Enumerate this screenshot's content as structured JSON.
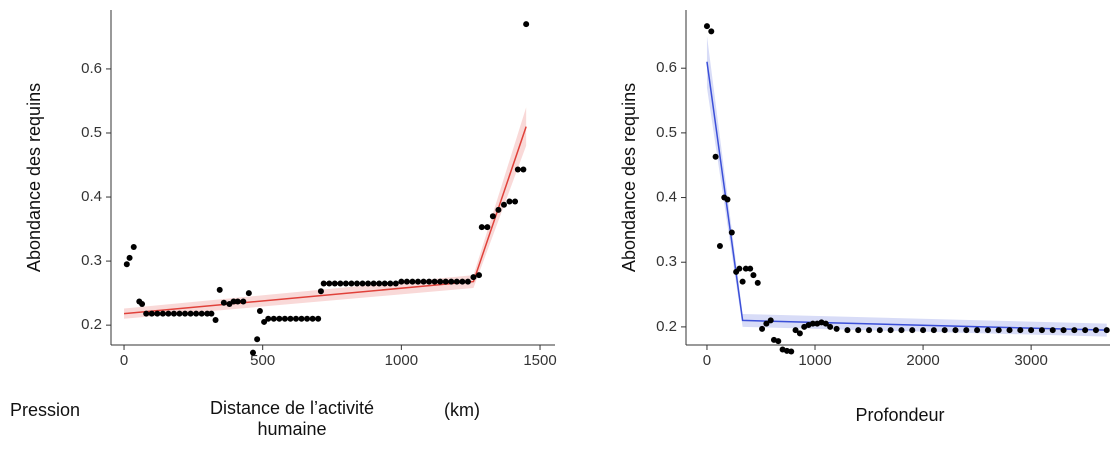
{
  "chart_data": [
    {
      "type": "scatter",
      "y_label": "Abondance des requins",
      "x_label_parts": [
        "Pression",
        "Distance de l’activité humaine",
        "(km)"
      ],
      "color": "#000000",
      "x": [
        10,
        20,
        35,
        55,
        65,
        80,
        100,
        120,
        140,
        160,
        180,
        200,
        220,
        240,
        260,
        280,
        300,
        315,
        330,
        345,
        360,
        380,
        395,
        410,
        430,
        450,
        465,
        480,
        490,
        505,
        520,
        540,
        560,
        580,
        600,
        620,
        640,
        660,
        680,
        700,
        710,
        720,
        740,
        760,
        780,
        800,
        820,
        840,
        860,
        880,
        900,
        920,
        940,
        960,
        980,
        1000,
        1020,
        1040,
        1060,
        1080,
        1100,
        1120,
        1140,
        1160,
        1180,
        1200,
        1220,
        1240,
        1260,
        1280,
        1290,
        1310,
        1330,
        1350,
        1370,
        1390,
        1410,
        1420,
        1440,
        1450
      ],
      "values": [
        0.295,
        0.305,
        0.322,
        0.237,
        0.233,
        0.218,
        0.218,
        0.218,
        0.218,
        0.218,
        0.218,
        0.218,
        0.218,
        0.218,
        0.218,
        0.218,
        0.218,
        0.218,
        0.208,
        0.255,
        0.235,
        0.233,
        0.237,
        0.237,
        0.237,
        0.25,
        0.157,
        0.178,
        0.222,
        0.205,
        0.21,
        0.21,
        0.21,
        0.21,
        0.21,
        0.21,
        0.21,
        0.21,
        0.21,
        0.21,
        0.253,
        0.265,
        0.265,
        0.265,
        0.265,
        0.265,
        0.265,
        0.265,
        0.265,
        0.265,
        0.265,
        0.265,
        0.265,
        0.265,
        0.265,
        0.268,
        0.268,
        0.268,
        0.268,
        0.268,
        0.268,
        0.268,
        0.268,
        0.268,
        0.268,
        0.268,
        0.268,
        0.268,
        0.275,
        0.278,
        0.353,
        0.353,
        0.37,
        0.38,
        0.388,
        0.393,
        0.393,
        0.443,
        0.443,
        0.67
      ],
      "fit": {
        "color": "#e0413a",
        "x": [
          0,
          1260,
          1450
        ],
        "values": [
          0.218,
          0.268,
          0.51
        ],
        "lower": [
          0.21,
          0.258,
          0.48
        ],
        "upper": [
          0.226,
          0.278,
          0.54
        ]
      },
      "xlim": [
        -47,
        1554
      ],
      "ylim": [
        0.169,
        0.692
      ],
      "xticks": [
        0,
        500,
        1000,
        1500
      ],
      "yticks": [
        0.2,
        0.3,
        0.4,
        0.5,
        0.6
      ]
    },
    {
      "type": "scatter",
      "y_label": "Abondance des requins",
      "x_label_parts": [
        "Profondeur"
      ],
      "color": "#000000",
      "x": [
        0,
        40,
        80,
        120,
        160,
        190,
        230,
        270,
        300,
        330,
        360,
        400,
        430,
        470,
        510,
        550,
        590,
        620,
        660,
        700,
        740,
        780,
        820,
        860,
        900,
        940,
        980,
        1020,
        1060,
        1100,
        1140,
        1200,
        1300,
        1400,
        1500,
        1600,
        1700,
        1800,
        1900,
        2000,
        2100,
        2200,
        2300,
        2400,
        2500,
        2600,
        2700,
        2800,
        2900,
        3000,
        3100,
        3200,
        3300,
        3400,
        3500,
        3600,
        3700
      ],
      "values": [
        0.665,
        0.657,
        0.463,
        0.325,
        0.4,
        0.397,
        0.346,
        0.285,
        0.29,
        0.27,
        0.29,
        0.29,
        0.28,
        0.268,
        0.197,
        0.205,
        0.21,
        0.18,
        0.178,
        0.165,
        0.163,
        0.162,
        0.195,
        0.19,
        0.2,
        0.203,
        0.205,
        0.205,
        0.207,
        0.205,
        0.2,
        0.197,
        0.195,
        0.195,
        0.195,
        0.195,
        0.195,
        0.195,
        0.195,
        0.195,
        0.195,
        0.195,
        0.195,
        0.195,
        0.195,
        0.195,
        0.195,
        0.195,
        0.195,
        0.195,
        0.195,
        0.195,
        0.195,
        0.195,
        0.195,
        0.195,
        0.195
      ],
      "fit": {
        "color": "#3b4fd8",
        "x": [
          0,
          330,
          3700
        ],
        "values": [
          0.61,
          0.21,
          0.195
        ],
        "lower": [
          0.57,
          0.2,
          0.185
        ],
        "upper": [
          0.65,
          0.22,
          0.205
        ]
      },
      "xlim": [
        -194,
        3730
      ],
      "ylim": [
        0.172,
        0.69
      ],
      "xticks": [
        0,
        1000,
        2000,
        3000
      ],
      "yticks": [
        0.2,
        0.3,
        0.4,
        0.5,
        0.6
      ]
    }
  ]
}
